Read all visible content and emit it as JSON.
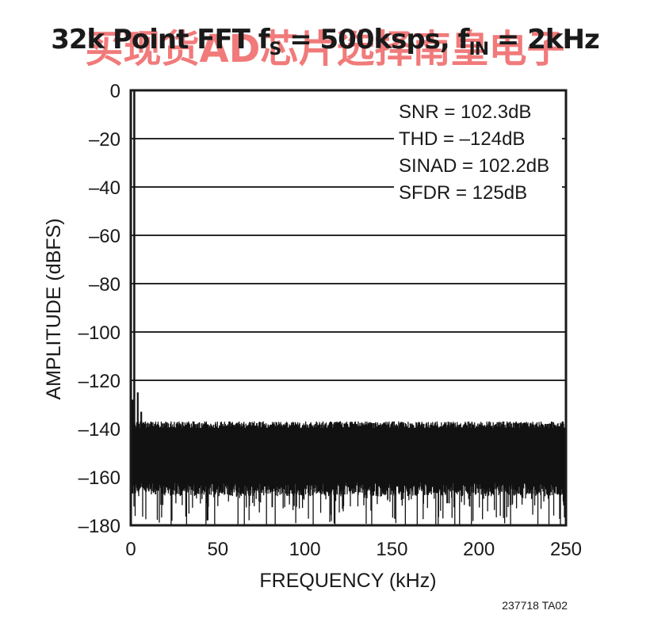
{
  "chart_data": {
    "type": "line",
    "title": {
      "main": "32k Point FFT f",
      "fs_sub": "S",
      "middle": " = 500ksps, f",
      "fin_sub": "IN",
      "end": " = 2kHz"
    },
    "xlabel": "FREQUENCY (kHz)",
    "ylabel": "AMPLITUDE (dBFS)",
    "xlim": [
      0,
      250
    ],
    "ylim": [
      -180,
      0
    ],
    "x_ticks": [
      "0",
      "50",
      "100",
      "150",
      "200",
      "250"
    ],
    "y_ticks": [
      "0",
      "–20",
      "–40",
      "–60",
      "–80",
      "–100",
      "–120",
      "–140",
      "–160",
      "–180"
    ],
    "grid": "horizontal",
    "annotations": [
      "SNR = 102.3dB",
      "THD = –124dB",
      "SINAD = 102.2dB",
      "SFDR = 125dB"
    ],
    "series": [
      {
        "fundamental": {
          "x": 2,
          "y": 0
        },
        "spurs": [
          {
            "x": 4,
            "y": -125
          },
          {
            "x": 6,
            "y": -133
          },
          {
            "x": 1,
            "y": -128
          }
        ],
        "noise_floor_top": -137,
        "noise_floor_bottom": -165,
        "noise_deep_dips_to": -180,
        "color": "#111111"
      }
    ],
    "figure_id": "237718 TA02"
  },
  "watermark": "买现货AD芯片选择南皇电子"
}
